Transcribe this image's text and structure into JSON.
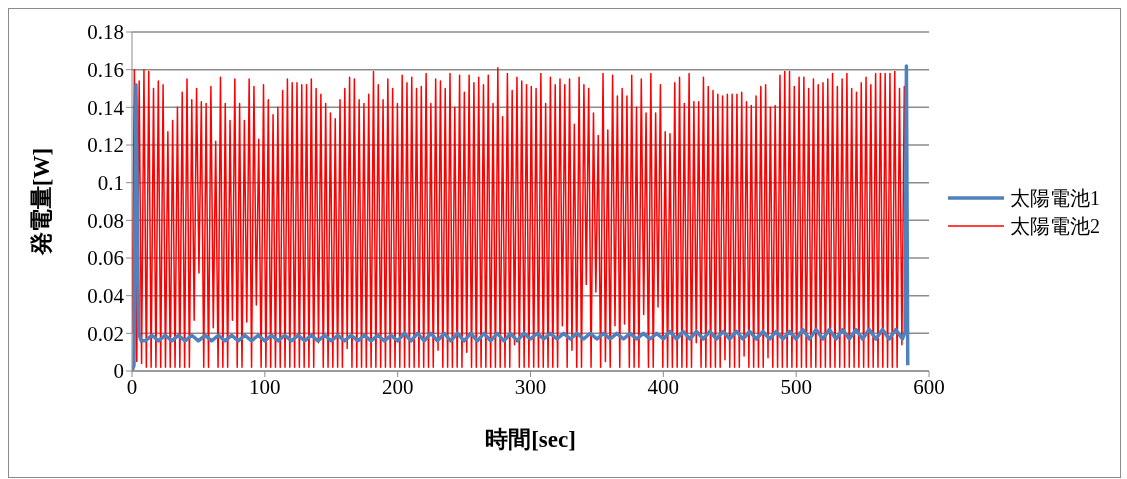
{
  "chart_data": {
    "type": "line",
    "xlabel": "時間[sec]",
    "ylabel": "発電量[W]",
    "xlim": [
      0,
      600
    ],
    "xticks": [
      0,
      100,
      200,
      300,
      400,
      500,
      600
    ],
    "ylim": [
      0,
      0.18
    ],
    "yticks": [
      0,
      0.02,
      0.04,
      0.06,
      0.08,
      0.1,
      0.12,
      0.14,
      0.16,
      0.18
    ],
    "grid": "y",
    "legend": "right",
    "marker": "none",
    "line_style": "solid",
    "series": [
      {
        "name": "太陽電池1",
        "color": "#4f81bd",
        "x": [
          0,
          1.5,
          3,
          5,
          7,
          10,
          15,
          20,
          25,
          30,
          35,
          40,
          45,
          50,
          55,
          60,
          65,
          70,
          75,
          80,
          85,
          90,
          95,
          100,
          105,
          110,
          115,
          120,
          125,
          130,
          135,
          140,
          145,
          150,
          155,
          160,
          165,
          170,
          175,
          180,
          185,
          190,
          195,
          200,
          205,
          210,
          215,
          220,
          225,
          230,
          235,
          240,
          245,
          250,
          255,
          260,
          265,
          270,
          275,
          280,
          285,
          290,
          295,
          300,
          305,
          310,
          315,
          320,
          325,
          330,
          335,
          340,
          345,
          350,
          355,
          360,
          365,
          370,
          375,
          380,
          385,
          390,
          395,
          400,
          405,
          410,
          415,
          420,
          425,
          430,
          435,
          440,
          445,
          450,
          455,
          460,
          465,
          470,
          475,
          480,
          485,
          490,
          495,
          500,
          505,
          510,
          515,
          520,
          525,
          530,
          535,
          540,
          545,
          550,
          555,
          560,
          565,
          570,
          575,
          580,
          582,
          583,
          584
        ],
        "values": [
          0,
          0.003,
          0.152,
          0.02,
          0.016,
          0.016,
          0.019,
          0.016,
          0.019,
          0.016,
          0.019,
          0.016,
          0.019,
          0.016,
          0.019,
          0.016,
          0.019,
          0.016,
          0.019,
          0.016,
          0.019,
          0.016,
          0.019,
          0.016,
          0.019,
          0.016,
          0.019,
          0.016,
          0.019,
          0.016,
          0.019,
          0.016,
          0.019,
          0.016,
          0.019,
          0.016,
          0.019,
          0.016,
          0.019,
          0.016,
          0.019,
          0.016,
          0.019,
          0.016,
          0.02,
          0.016,
          0.02,
          0.016,
          0.02,
          0.016,
          0.02,
          0.016,
          0.02,
          0.016,
          0.02,
          0.016,
          0.02,
          0.016,
          0.02,
          0.016,
          0.02,
          0.016,
          0.02,
          0.017,
          0.02,
          0.017,
          0.02,
          0.017,
          0.02,
          0.017,
          0.02,
          0.017,
          0.02,
          0.017,
          0.02,
          0.017,
          0.02,
          0.017,
          0.02,
          0.017,
          0.02,
          0.017,
          0.02,
          0.017,
          0.021,
          0.017,
          0.021,
          0.017,
          0.021,
          0.017,
          0.021,
          0.017,
          0.021,
          0.017,
          0.021,
          0.017,
          0.021,
          0.017,
          0.021,
          0.017,
          0.021,
          0.017,
          0.021,
          0.017,
          0.022,
          0.017,
          0.022,
          0.017,
          0.022,
          0.017,
          0.022,
          0.017,
          0.022,
          0.017,
          0.022,
          0.017,
          0.022,
          0.017,
          0.022,
          0.017,
          0.021,
          0.162,
          0.003
        ]
      },
      {
        "name": "太陽電池2",
        "color": "#ff0000",
        "x": [
          0,
          1.8,
          3.6,
          5.4,
          7.2,
          9,
          10.8,
          12.6,
          14.4,
          16.2,
          18,
          19.8,
          21.6,
          23.4,
          25.2,
          27,
          28.8,
          30.6,
          32.4,
          34.2,
          36,
          37.8,
          39.6,
          41.4,
          43.2,
          45,
          46.8,
          48.6,
          50.4,
          52.2,
          54,
          55.8,
          57.6,
          59.4,
          61.2,
          63,
          64.8,
          66.6,
          68.4,
          70.2,
          72,
          73.8,
          75.6,
          77.4,
          79.2,
          81,
          82.8,
          84.6,
          86.4,
          88.2,
          90,
          91.8,
          93.6,
          95.4,
          97.2,
          99,
          100.8,
          102.6,
          104.4,
          106.2,
          108,
          109.8,
          111.6,
          113.4,
          115.2,
          117,
          118.8,
          120.6,
          122.4,
          124.2,
          126,
          127.8,
          129.6,
          131.4,
          133.2,
          135,
          136.8,
          138.6,
          140.4,
          142.2,
          144,
          145.8,
          147.6,
          149.4,
          151.2,
          153,
          154.8,
          156.6,
          158.4,
          160.2,
          162,
          163.8,
          165.6,
          167.4,
          169.2,
          171,
          172.8,
          174.6,
          176.4,
          178.2,
          180,
          181.8,
          183.6,
          185.4,
          187.2,
          189,
          190.8,
          192.6,
          194.4,
          196.2,
          198,
          199.8,
          201.6,
          203.4,
          205.2,
          207,
          208.8,
          210.6,
          212.4,
          214.2,
          216,
          217.8,
          219.6,
          221.4,
          223.2,
          225,
          226.8,
          228.6,
          230.4,
          232.2,
          234,
          235.8,
          237.6,
          239.4,
          241.2,
          243,
          244.8,
          246.6,
          248.4,
          250.2,
          252,
          253.8,
          255.6,
          257.4,
          259.2,
          261,
          262.8,
          264.6,
          266.4,
          268.2,
          270,
          271.8,
          273.6,
          275.4,
          277.2,
          279,
          280.8,
          282.6,
          284.4,
          286.2,
          288,
          289.8,
          291.6,
          293.4,
          295.2,
          297,
          298.8,
          300.6,
          302.4,
          304.2,
          306,
          307.8,
          309.6,
          311.4,
          313.2,
          315,
          316.8,
          318.6,
          320.4,
          322.2,
          324,
          325.8,
          327.6,
          329.4,
          331.2,
          333,
          334.8,
          336.6,
          338.4,
          340.2,
          342,
          343.8,
          345.6,
          347.4,
          349.2,
          351,
          352.8,
          354.6,
          356.4,
          358.2,
          360,
          361.8,
          363.6,
          365.4,
          367.2,
          369,
          370.8,
          372.6,
          374.4,
          376.2,
          378,
          379.8,
          381.6,
          383.4,
          385.2,
          387,
          388.8,
          390.6,
          392.4,
          394.2,
          396,
          397.8,
          399.6,
          401.4,
          403.2,
          405,
          406.8,
          408.6,
          410.4,
          412.2,
          414,
          415.8,
          417.6,
          419.4,
          421.2,
          423,
          424.8,
          426.6,
          428.4,
          430.2,
          432,
          433.8,
          435.6,
          437.4,
          439.2,
          441,
          442.8,
          444.6,
          446.4,
          448.2,
          450,
          451.8,
          453.6,
          455.4,
          457.2,
          459,
          460.8,
          462.6,
          464.4,
          466.2,
          468,
          469.8,
          471.6,
          473.4,
          475.2,
          477,
          478.8,
          480.6,
          482.4,
          484.2,
          486,
          487.8,
          489.6,
          491.4,
          493.2,
          495,
          496.8,
          498.6,
          500.4,
          502.2,
          504,
          505.8,
          507.6,
          509.4,
          511.2,
          513,
          514.8,
          516.6,
          518.4,
          520.2,
          522,
          523.8,
          525.6,
          527.4,
          529.2,
          531,
          532.8,
          534.6,
          536.4,
          538.2,
          540,
          541.8,
          543.6,
          545.4,
          547.2,
          549,
          550.8,
          552.6,
          554.4,
          556.2,
          558,
          559.8,
          561.6,
          563.4,
          565.2,
          567,
          568.8,
          570.6,
          572.4,
          574.2,
          576,
          577.8,
          579.6,
          581.4,
          583.2
        ],
        "values": [
          0.02,
          0.16,
          0.005,
          0.154,
          0.004,
          0.16,
          0.002,
          0.159,
          0.002,
          0.15,
          0.002,
          0.154,
          0.002,
          0.152,
          0.002,
          0.127,
          0.002,
          0.133,
          0.002,
          0.14,
          0.002,
          0.148,
          0.002,
          0.155,
          0.002,
          0.144,
          0.027,
          0.15,
          0.052,
          0.143,
          0.002,
          0.142,
          0.002,
          0.151,
          0.023,
          0.122,
          0.002,
          0.156,
          0.002,
          0.142,
          0.002,
          0.133,
          0.027,
          0.155,
          0.002,
          0.142,
          0.002,
          0.133,
          0.026,
          0.155,
          0.002,
          0.151,
          0.035,
          0.123,
          0.002,
          0.152,
          0.002,
          0.144,
          0.002,
          0.136,
          0.002,
          0.14,
          0.002,
          0.149,
          0.002,
          0.155,
          0.002,
          0.153,
          0.002,
          0.153,
          0.002,
          0.152,
          0.002,
          0.152,
          0.002,
          0.155,
          0.002,
          0.15,
          0.015,
          0.147,
          0.002,
          0.142,
          0.002,
          0.137,
          0.002,
          0.134,
          0.002,
          0.144,
          0.002,
          0.15,
          0.012,
          0.156,
          0.002,
          0.155,
          0.002,
          0.144,
          0.002,
          0.142,
          0.002,
          0.147,
          0.002,
          0.159,
          0.002,
          0.152,
          0.002,
          0.144,
          0.002,
          0.155,
          0.002,
          0.15,
          0.002,
          0.142,
          0.002,
          0.157,
          0.002,
          0.153,
          0.002,
          0.156,
          0.002,
          0.15,
          0.002,
          0.151,
          0.002,
          0.158,
          0.002,
          0.142,
          0.002,
          0.155,
          0.011,
          0.154,
          0.002,
          0.15,
          0.002,
          0.158,
          0.002,
          0.14,
          0.002,
          0.157,
          0.002,
          0.148,
          0.01,
          0.157,
          0.002,
          0.153,
          0.002,
          0.156,
          0.002,
          0.152,
          0.002,
          0.157,
          0.002,
          0.142,
          0.002,
          0.161,
          0.002,
          0.135,
          0.002,
          0.158,
          0.002,
          0.149,
          0.014,
          0.156,
          0.002,
          0.154,
          0.002,
          0.152,
          0.002,
          0.151,
          0.002,
          0.15,
          0.002,
          0.158,
          0.002,
          0.142,
          0.002,
          0.156,
          0.002,
          0.152,
          0.002,
          0.155,
          0.024,
          0.152,
          0.002,
          0.155,
          0.011,
          0.131,
          0.002,
          0.156,
          0.002,
          0.152,
          0.046,
          0.15,
          0.002,
          0.137,
          0.042,
          0.125,
          0.002,
          0.158,
          0.005,
          0.128,
          0.002,
          0.157,
          0.024,
          0.146,
          0.002,
          0.15,
          0.025,
          0.146,
          0.002,
          0.157,
          0.002,
          0.14,
          0.002,
          0.155,
          0.03,
          0.137,
          0.002,
          0.158,
          0.002,
          0.137,
          0.034,
          0.152,
          0.002,
          0.127,
          0.002,
          0.126,
          0.002,
          0.153,
          0.002,
          0.156,
          0.002,
          0.142,
          0.002,
          0.158,
          0.002,
          0.143,
          0.015,
          0.143,
          0.002,
          0.156,
          0.002,
          0.151,
          0.002,
          0.149,
          0.002,
          0.147,
          0.002,
          0.146,
          0.006,
          0.147,
          0.002,
          0.147,
          0.002,
          0.147,
          0.002,
          0.148,
          0.008,
          0.143,
          0.002,
          0.141,
          0.002,
          0.146,
          0.002,
          0.151,
          0.002,
          0.152,
          0.007,
          0.14,
          0.002,
          0.141,
          0.002,
          0.157,
          0.002,
          0.159,
          0.002,
          0.159,
          0.002,
          0.151,
          0.002,
          0.156,
          0.002,
          0.156,
          0.002,
          0.15,
          0.002,
          0.155,
          0.002,
          0.152,
          0.002,
          0.153,
          0.002,
          0.155,
          0.002,
          0.158,
          0.002,
          0.151,
          0.002,
          0.155,
          0.002,
          0.158,
          0.002,
          0.15,
          0.002,
          0.148,
          0.002,
          0.153,
          0.002,
          0.156,
          0.002,
          0.152,
          0.002,
          0.158,
          0.002,
          0.158,
          0.002,
          0.158,
          0.002,
          0.158,
          0.002,
          0.159,
          0.002,
          0.15,
          0.014,
          0.151,
          0.072
        ]
      }
    ]
  }
}
